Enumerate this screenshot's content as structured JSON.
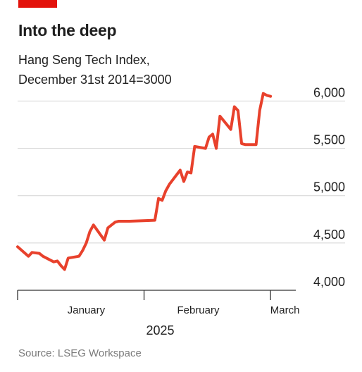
{
  "header": {
    "title": "Into the deep",
    "subtitle_line1": "Hang Seng Tech Index,",
    "subtitle_line2": "December 31st 2014=3000"
  },
  "footer": {
    "source": "Source: LSEG Workspace"
  },
  "colors": {
    "accent": "#e3120b",
    "line": "#e8412c",
    "grid": "#d4d4d4",
    "axis": "#333333"
  },
  "chart_data": {
    "type": "line",
    "title": "Into the deep",
    "subtitle": "Hang Seng Tech Index, December 31st 2014=3000",
    "xlabel": "2025",
    "ylabel": "",
    "xlim": [
      "2024-12-27",
      "2025-03-14"
    ],
    "ylim": [
      4000,
      6100
    ],
    "yticks": [
      4000,
      4500,
      5000,
      5500,
      6000
    ],
    "ytick_labels": [
      "4,000",
      "4,500",
      "5,000",
      "5,500",
      "6,000"
    ],
    "xtick_dates": [
      "2024-12-27",
      "2025-01-31",
      "2025-03-07"
    ],
    "xlabels": [
      {
        "label": "January",
        "date": "2025-01-15"
      },
      {
        "label": "February",
        "date": "2025-02-15"
      },
      {
        "label": "March",
        "date": "2025-03-11"
      }
    ],
    "grid": true,
    "series": [
      {
        "x": [
          "2024-12-27",
          "2024-12-30",
          "2024-12-31",
          "2025-01-02",
          "2025-01-03",
          "2025-01-06",
          "2025-01-07",
          "2025-01-08",
          "2025-01-09",
          "2025-01-10",
          "2025-01-13",
          "2025-01-14",
          "2025-01-15",
          "2025-01-16",
          "2025-01-17",
          "2025-01-20",
          "2025-01-21",
          "2025-01-22",
          "2025-01-23",
          "2025-01-24",
          "2025-01-27",
          "2025-02-03",
          "2025-02-04",
          "2025-02-05",
          "2025-02-06",
          "2025-02-07",
          "2025-02-10",
          "2025-02-11",
          "2025-02-12",
          "2025-02-13",
          "2025-02-14",
          "2025-02-17",
          "2025-02-18",
          "2025-02-19",
          "2025-02-20",
          "2025-02-21",
          "2025-02-24",
          "2025-02-25",
          "2025-02-26",
          "2025-02-27",
          "2025-02-28",
          "2025-03-03",
          "2025-03-04",
          "2025-03-05",
          "2025-03-06",
          "2025-03-07"
        ],
        "values": [
          4460,
          4360,
          4400,
          4390,
          4360,
          4300,
          4310,
          4260,
          4220,
          4340,
          4360,
          4420,
          4500,
          4620,
          4690,
          4530,
          4660,
          4690,
          4720,
          4730,
          4730,
          4740,
          4970,
          4950,
          5050,
          5120,
          5270,
          5150,
          5250,
          5240,
          5520,
          5500,
          5620,
          5650,
          5500,
          5840,
          5700,
          5940,
          5900,
          5550,
          5540,
          5540,
          5900,
          6080,
          6060,
          6050
        ]
      }
    ]
  }
}
